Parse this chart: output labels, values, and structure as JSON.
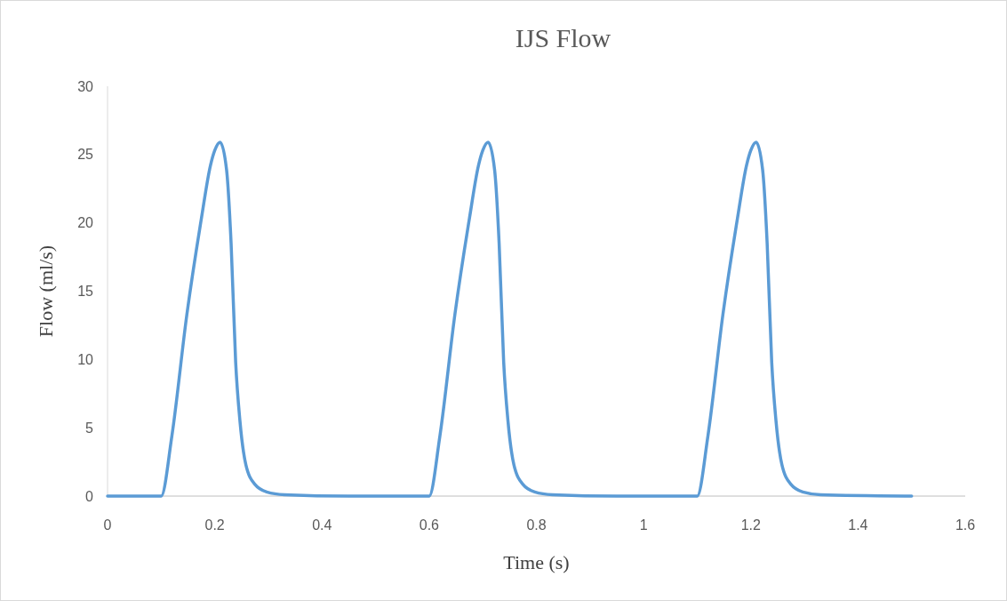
{
  "chart_data": {
    "type": "line",
    "title": "IJS Flow",
    "xlabel": "Time (s)",
    "ylabel": "Flow (ml/s)",
    "xlim": [
      0,
      1.6
    ],
    "xticks": [
      0,
      0.2,
      0.4,
      0.6,
      0.8,
      1,
      1.2,
      1.4,
      1.6
    ],
    "ylim": [
      0,
      30
    ],
    "yticks": [
      0,
      5,
      10,
      15,
      20,
      25,
      30
    ],
    "grid": false,
    "marker": "none",
    "line_style": "solid",
    "series": [
      {
        "color": "#5b9bd5",
        "x": [
          0,
          0.1,
          0.12,
          0.148,
          0.175,
          0.192,
          0.2,
          0.21,
          0.222,
          0.2305,
          0.239,
          0.247,
          0.258,
          0.275,
          0.297,
          0.33,
          0.45,
          0.6,
          0.62,
          0.648,
          0.675,
          0.692,
          0.7,
          0.71,
          0.722,
          0.7305,
          0.739,
          0.747,
          0.758,
          0.775,
          0.797,
          0.83,
          0.95,
          1.1,
          1.12,
          1.148,
          1.175,
          1.192,
          1.2,
          1.21,
          1.222,
          1.2305,
          1.239,
          1.247,
          1.258,
          1.275,
          1.297,
          1.33,
          1.5
        ],
        "values": [
          0,
          0,
          4.4,
          13.3,
          20.3,
          24.2,
          25.3,
          25.9,
          23.9,
          18.5,
          9.8,
          5.5,
          2.3,
          0.85,
          0.3,
          0.1,
          0,
          0,
          4.4,
          13.3,
          20.3,
          24.2,
          25.3,
          25.9,
          23.9,
          18.5,
          9.8,
          5.5,
          2.3,
          0.85,
          0.3,
          0.1,
          0,
          0,
          4.4,
          13.3,
          20.3,
          24.2,
          25.3,
          25.9,
          23.9,
          18.5,
          9.8,
          5.5,
          2.3,
          0.85,
          0.3,
          0.1,
          0
        ]
      }
    ]
  }
}
